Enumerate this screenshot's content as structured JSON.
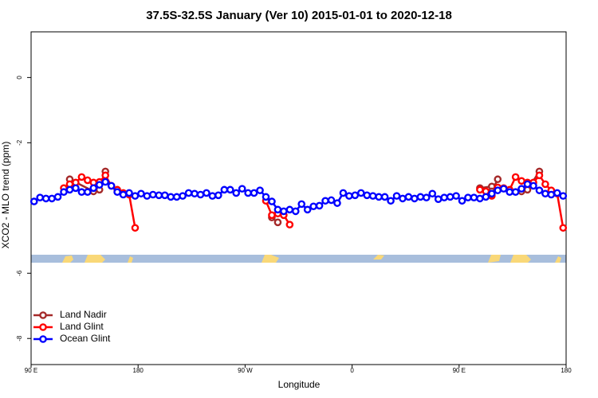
{
  "chart_data": {
    "type": "line",
    "title": "37.5S-32.5S January (Ver 10)   2015-01-01 to 2020-12-18",
    "xlabel": "Longitude",
    "ylabel": "XCO2 - MLO trend (ppm)",
    "xlim": [
      90,
      540
    ],
    "xticks": [
      {
        "value": 90,
        "label": "90 E"
      },
      {
        "value": 180,
        "label": "180"
      },
      {
        "value": 270,
        "label": "90 W"
      },
      {
        "value": 360,
        "label": "0"
      },
      {
        "value": 450,
        "label": "90 E"
      },
      {
        "value": 540,
        "label": "180"
      }
    ],
    "ylim": [
      -8.8,
      1.4
    ],
    "yticks": [
      -8,
      -6,
      -2,
      0
    ],
    "legend": "bottom-left",
    "series": [
      {
        "name": "Land Nadir",
        "color": "#a52a2a",
        "x": [
          122.5,
          142.5,
          147.5,
          152.5,
          200,
          292.5,
          297.5,
          400,
          467.5,
          477.5,
          470,
          477.5,
          482.5,
          490,
          502.5,
          507.5,
          517.5
        ],
        "values": [
          -3.12,
          -3.49,
          -3.44,
          -2.88,
          null,
          -4.29,
          -4.44,
          null,
          -3.39,
          -3.34,
          null,
          -3.49,
          -3.12,
          null,
          -3.49,
          -3.44,
          -2.88
        ]
      },
      {
        "name": "Land Glint",
        "color": "#ff0000",
        "x": [
          117.5,
          122.5,
          127.5,
          132.5,
          137.5,
          142.5,
          147.5,
          152.5,
          157.5,
          162.5,
          167.5,
          172.5,
          177.5,
          230,
          287.5,
          292.5,
          297.5,
          302.5,
          307.5,
          400,
          467.5,
          472.5,
          477.5,
          470,
          477.5,
          482.5,
          487.5,
          492.5,
          497.5,
          502.5,
          507.5,
          512.5,
          517.5,
          522.5,
          527.5,
          532.5,
          537.5
        ],
        "values": [
          -3.39,
          -3.27,
          -3.22,
          -3.05,
          -3.15,
          -3.22,
          -3.2,
          -3.0,
          -3.32,
          -3.44,
          -3.54,
          -3.59,
          -4.61,
          null,
          -3.78,
          -4.22,
          -4.17,
          -4.22,
          -4.51,
          null,
          -3.44,
          -3.49,
          -3.63,
          null,
          -3.59,
          -3.37,
          -3.39,
          -3.44,
          -3.05,
          -3.17,
          -3.22,
          -3.22,
          -3.0,
          -3.27,
          -3.46,
          -3.56,
          -4.61
        ]
      },
      {
        "name": "Ocean Glint",
        "color": "#0000ff",
        "x": [
          92.5,
          97.5,
          102.5,
          107.5,
          112.5,
          117.5,
          122.5,
          127.5,
          132.5,
          137.5,
          142.5,
          147.5,
          152.5,
          157.5,
          162.5,
          167.5,
          172.5,
          177.5,
          182.5,
          187.5,
          192.5,
          197.5,
          202.5,
          207.5,
          212.5,
          217.5,
          222.5,
          227.5,
          232.5,
          237.5,
          242.5,
          247.5,
          252.5,
          257.5,
          262.5,
          267.5,
          272.5,
          277.5,
          282.5,
          287.5,
          292.5,
          297.5,
          302.5,
          307.5,
          312.5,
          317.5,
          322.5,
          327.5,
          332.5,
          337.5,
          342.5,
          347.5,
          352.5,
          357.5,
          362.5,
          367.5,
          372.5,
          377.5,
          382.5,
          387.5,
          392.5,
          397.5,
          402.5,
          407.5,
          412.5,
          417.5,
          422.5,
          427.5,
          432.5,
          437.5,
          442.5,
          447.5,
          452.5,
          457.5,
          462.5,
          467.5,
          472.5,
          477.5,
          482.5,
          487.5,
          492.5,
          497.5,
          502.5,
          507.5,
          512.5,
          517.5,
          522.5,
          527.5,
          532.5,
          537.5
        ],
        "values": [
          -3.8,
          -3.68,
          -3.71,
          -3.71,
          -3.66,
          -3.51,
          -3.44,
          -3.39,
          -3.51,
          -3.51,
          -3.39,
          -3.29,
          -3.2,
          -3.32,
          -3.51,
          -3.59,
          -3.54,
          -3.63,
          -3.56,
          -3.63,
          -3.59,
          -3.61,
          -3.61,
          -3.66,
          -3.66,
          -3.63,
          -3.54,
          -3.56,
          -3.59,
          -3.54,
          -3.63,
          -3.61,
          -3.44,
          -3.44,
          -3.54,
          -3.41,
          -3.54,
          -3.54,
          -3.46,
          -3.66,
          -3.8,
          -4.05,
          -4.1,
          -4.05,
          -4.1,
          -3.88,
          -4.05,
          -3.95,
          -3.93,
          -3.78,
          -3.76,
          -3.85,
          -3.54,
          -3.63,
          -3.61,
          -3.54,
          -3.61,
          -3.63,
          -3.66,
          -3.66,
          -3.78,
          -3.63,
          -3.71,
          -3.66,
          -3.71,
          -3.66,
          -3.68,
          -3.56,
          -3.73,
          -3.68,
          -3.66,
          -3.63,
          -3.78,
          -3.68,
          -3.68,
          -3.71,
          -3.66,
          -3.56,
          -3.46,
          -3.41,
          -3.51,
          -3.51,
          -3.41,
          -3.27,
          -3.32,
          -3.46,
          -3.56,
          -3.59,
          -3.54,
          -3.63
        ]
      }
    ]
  }
}
